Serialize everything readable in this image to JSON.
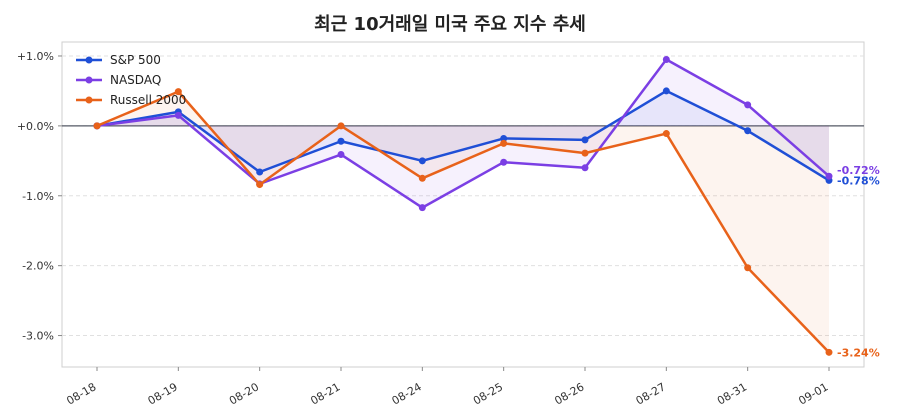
{
  "chart_data": {
    "type": "line",
    "title": "최근 10거래일 미국 주요 지수 추세",
    "xlabel": "",
    "ylabel": "",
    "categories": [
      "08-18",
      "08-19",
      "08-20",
      "08-21",
      "08-24",
      "08-25",
      "08-26",
      "08-27",
      "08-31",
      "09-01"
    ],
    "ylim": [
      -3.45,
      1.2
    ],
    "yticks": [
      1.0,
      0.0,
      -1.0,
      -2.0,
      -3.0
    ],
    "ytick_labels": [
      "+1.0%",
      "+0.0%",
      "-1.0%",
      "-2.0%",
      "-3.0%"
    ],
    "grid": true,
    "legend_position": "top-left",
    "zero_line": true,
    "series": [
      {
        "name": "S&P 500",
        "color": "#1f4fd6",
        "values": [
          0.0,
          0.2,
          -0.66,
          -0.22,
          -0.5,
          -0.18,
          -0.2,
          0.5,
          -0.07,
          -0.78
        ],
        "end_label": "-0.78%"
      },
      {
        "name": "NASDAQ",
        "color": "#7b3fe4",
        "values": [
          0.0,
          0.15,
          -0.83,
          -0.41,
          -1.17,
          -0.52,
          -0.6,
          0.95,
          0.3,
          -0.72
        ],
        "end_label": "-0.72%"
      },
      {
        "name": "Russell 2000",
        "color": "#e8621a",
        "values": [
          0.0,
          0.49,
          -0.84,
          0.0,
          -0.75,
          -0.25,
          -0.39,
          -0.11,
          -2.03,
          -3.24
        ],
        "end_label": "-3.24%"
      }
    ]
  }
}
